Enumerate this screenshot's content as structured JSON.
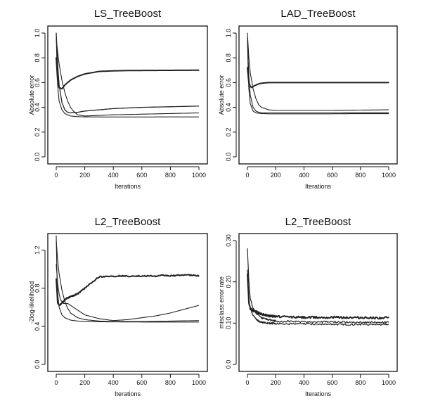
{
  "chart_data": [
    {
      "type": "line",
      "title": "LS_TreeBoost",
      "xlabel": "Iterations",
      "ylabel": "Absolute error",
      "xlim": [
        0,
        1000
      ],
      "ylim": [
        0.0,
        1.0
      ],
      "xticks": [
        0,
        200,
        400,
        600,
        800,
        1000
      ],
      "yticks": [
        0.0,
        0.2,
        0.4,
        0.6,
        0.8,
        1.0
      ],
      "xtick_labels": [
        "0",
        "200",
        "400",
        "600",
        "800",
        "1000"
      ],
      "ytick_labels": [
        "0.0",
        "0.2",
        "0.4",
        "0.6",
        "0.8",
        "1.0"
      ],
      "grid": false,
      "series": [
        {
          "x": [
            0,
            10,
            20,
            40,
            60,
            100,
            150,
            200,
            300,
            400,
            500,
            600,
            800,
            1000
          ],
          "values": [
            0.8,
            0.62,
            0.56,
            0.55,
            0.58,
            0.62,
            0.65,
            0.67,
            0.69,
            0.695,
            0.697,
            0.698,
            0.699,
            0.7
          ],
          "width": 2.0,
          "noise": 0
        },
        {
          "x": [
            0,
            5,
            10,
            20,
            40,
            60,
            80,
            100,
            150,
            200,
            300,
            400,
            600,
            800,
            1000
          ],
          "values": [
            1.0,
            0.88,
            0.75,
            0.58,
            0.44,
            0.38,
            0.36,
            0.355,
            0.36,
            0.37,
            0.38,
            0.39,
            0.4,
            0.405,
            0.41
          ],
          "width": 1.3,
          "noise": 0
        },
        {
          "x": [
            0,
            10,
            20,
            40,
            60,
            80,
            100,
            120,
            150,
            200,
            300,
            400,
            600,
            800,
            1000
          ],
          "values": [
            0.95,
            0.85,
            0.75,
            0.62,
            0.52,
            0.45,
            0.4,
            0.37,
            0.34,
            0.33,
            0.335,
            0.34,
            0.345,
            0.35,
            0.355
          ],
          "width": 1.1,
          "noise": 0
        },
        {
          "x": [
            0,
            5,
            10,
            20,
            40,
            60,
            100,
            150,
            200,
            400,
            600,
            800,
            1000
          ],
          "values": [
            0.98,
            0.75,
            0.58,
            0.45,
            0.38,
            0.35,
            0.33,
            0.325,
            0.323,
            0.322,
            0.322,
            0.323,
            0.323
          ],
          "width": 1.1,
          "noise": 0
        }
      ]
    },
    {
      "type": "line",
      "title": "LAD_TreeBoost",
      "xlabel": "Iterations",
      "ylabel": "Absolute error",
      "xlim": [
        0,
        1000
      ],
      "ylim": [
        0.0,
        1.0
      ],
      "xticks": [
        0,
        200,
        400,
        600,
        800,
        1000
      ],
      "yticks": [
        0.0,
        0.2,
        0.4,
        0.6,
        0.8,
        1.0
      ],
      "xtick_labels": [
        "0",
        "200",
        "400",
        "600",
        "800",
        "1000"
      ],
      "ytick_labels": [
        "0.0",
        "0.2",
        "0.4",
        "0.6",
        "0.8",
        "1.0"
      ],
      "grid": false,
      "series": [
        {
          "x": [
            0,
            10,
            20,
            30,
            50,
            80,
            100,
            150,
            200,
            400,
            600,
            800,
            1000
          ],
          "values": [
            0.72,
            0.6,
            0.57,
            0.56,
            0.575,
            0.59,
            0.595,
            0.6,
            0.6,
            0.6,
            0.6,
            0.6,
            0.6
          ],
          "width": 2.0,
          "noise": 0
        },
        {
          "x": [
            0,
            5,
            10,
            20,
            40,
            60,
            80,
            100,
            150,
            200,
            300,
            400,
            600,
            800,
            1000
          ],
          "values": [
            1.0,
            0.9,
            0.8,
            0.68,
            0.55,
            0.47,
            0.42,
            0.4,
            0.38,
            0.375,
            0.375,
            0.375,
            0.375,
            0.378,
            0.38
          ],
          "width": 1.1,
          "noise": 0
        },
        {
          "x": [
            0,
            5,
            10,
            20,
            40,
            60,
            80,
            100,
            150,
            200,
            400,
            600,
            800,
            1000
          ],
          "values": [
            0.96,
            0.8,
            0.65,
            0.5,
            0.4,
            0.37,
            0.36,
            0.355,
            0.355,
            0.355,
            0.355,
            0.355,
            0.356,
            0.356
          ],
          "width": 1.1,
          "noise": 0
        },
        {
          "x": [
            0,
            5,
            10,
            20,
            40,
            60,
            100,
            150,
            200,
            400,
            600,
            800,
            1000
          ],
          "values": [
            0.94,
            0.7,
            0.55,
            0.43,
            0.37,
            0.355,
            0.35,
            0.348,
            0.348,
            0.348,
            0.348,
            0.349,
            0.349
          ],
          "width": 1.1,
          "noise": 0
        }
      ]
    },
    {
      "type": "line",
      "title": "L2_TreeBoost",
      "xlabel": "Iterations",
      "ylabel": "-2log-likelihood",
      "xlim": [
        0,
        1000
      ],
      "ylim": [
        0.0,
        1.3
      ],
      "xticks": [
        0,
        200,
        400,
        600,
        800,
        1000
      ],
      "yticks": [
        0.0,
        0.4,
        0.8,
        1.2
      ],
      "xtick_labels": [
        "0",
        "200",
        "400",
        "600",
        "800",
        "1000"
      ],
      "ytick_labels": [
        "0.0",
        "0.4",
        "0.8",
        "1.2"
      ],
      "grid": false,
      "series": [
        {
          "x": [
            0,
            10,
            20,
            30,
            50,
            70,
            100,
            150,
            200,
            250,
            300,
            350,
            400,
            450,
            500,
            550,
            600,
            650,
            700,
            750,
            800,
            850,
            900,
            950,
            1000
          ],
          "values": [
            0.9,
            0.65,
            0.62,
            0.63,
            0.66,
            0.69,
            0.71,
            0.74,
            0.8,
            0.86,
            0.92,
            0.925,
            0.925,
            0.93,
            0.925,
            0.93,
            0.925,
            0.93,
            0.925,
            0.935,
            0.93,
            0.935,
            0.94,
            0.935,
            0.93
          ],
          "width": 2.0,
          "noise": 0.006
        },
        {
          "x": [
            0,
            10,
            20,
            30,
            50,
            80,
            100,
            150,
            200,
            300,
            400,
            500,
            600,
            700,
            800,
            900,
            1000
          ],
          "values": [
            1.05,
            0.85,
            0.74,
            0.68,
            0.64,
            0.64,
            0.62,
            0.57,
            0.52,
            0.48,
            0.46,
            0.47,
            0.49,
            0.51,
            0.54,
            0.58,
            0.62
          ],
          "width": 1.1,
          "noise": 0
        },
        {
          "x": [
            0,
            10,
            20,
            40,
            60,
            80,
            100,
            150,
            200,
            300,
            400,
            500,
            600,
            800,
            1000
          ],
          "values": [
            1.3,
            1.1,
            0.95,
            0.78,
            0.66,
            0.59,
            0.54,
            0.49,
            0.47,
            0.455,
            0.45,
            0.45,
            0.45,
            0.455,
            0.46
          ],
          "width": 1.1,
          "noise": 0
        },
        {
          "x": [
            0,
            5,
            10,
            20,
            40,
            60,
            100,
            150,
            200,
            300,
            400,
            600,
            800,
            1000
          ],
          "values": [
            1.35,
            0.95,
            0.75,
            0.6,
            0.52,
            0.49,
            0.465,
            0.455,
            0.45,
            0.447,
            0.446,
            0.445,
            0.445,
            0.445
          ],
          "width": 1.1,
          "noise": 0
        }
      ]
    },
    {
      "type": "line",
      "title": "L2_TreeBoost",
      "xlabel": "Iterations",
      "ylabel": "misclass error rate",
      "xlim": [
        0,
        1000
      ],
      "ylim": [
        0.0,
        0.3
      ],
      "xticks": [
        0,
        200,
        400,
        600,
        800,
        1000
      ],
      "yticks": [
        0.0,
        0.1,
        0.2,
        0.3
      ],
      "xtick_labels": [
        "0",
        "200",
        "400",
        "600",
        "800",
        "1000"
      ],
      "ytick_labels": [
        "0.0",
        "0.10",
        "0.20",
        "0.30"
      ],
      "grid": false,
      "series": [
        {
          "x": [
            0,
            10,
            20,
            40,
            60,
            80,
            100,
            150,
            200,
            300,
            400,
            600,
            800,
            1000
          ],
          "values": [
            0.22,
            0.15,
            0.135,
            0.13,
            0.128,
            0.125,
            0.122,
            0.118,
            0.116,
            0.115,
            0.114,
            0.114,
            0.113,
            0.113
          ],
          "width": 2.0,
          "noise": 0.0025
        },
        {
          "x": [
            0,
            10,
            20,
            40,
            60,
            80,
            100,
            150,
            200,
            300,
            400,
            600,
            800,
            1000
          ],
          "values": [
            0.28,
            0.2,
            0.16,
            0.135,
            0.125,
            0.118,
            0.112,
            0.108,
            0.105,
            0.104,
            0.103,
            0.103,
            0.102,
            0.102
          ],
          "width": 1.2,
          "noise": 0.0022
        },
        {
          "x": [
            0,
            10,
            20,
            40,
            60,
            80,
            100,
            150,
            200,
            300,
            400,
            600,
            800,
            1000
          ],
          "values": [
            0.23,
            0.16,
            0.135,
            0.12,
            0.11,
            0.105,
            0.102,
            0.1,
            0.099,
            0.098,
            0.098,
            0.097,
            0.097,
            0.097
          ],
          "width": 1.2,
          "noise": 0.0022
        }
      ]
    }
  ]
}
